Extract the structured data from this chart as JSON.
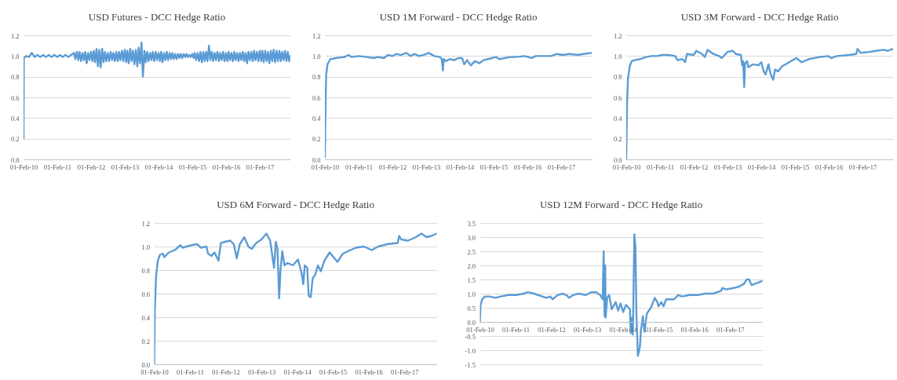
{
  "chart_data": [
    {
      "type": "line",
      "title": "USD Futures - DCC Hedge Ratio",
      "color": "#5b9bd5",
      "grid": "y",
      "xlim": [
        "2010-02-01",
        "2017-12-29"
      ],
      "xticks": [
        {
          "value": "2010-02-01",
          "label": "01-Feb-10"
        },
        {
          "value": "2011-02-01",
          "label": "01-Feb-11"
        },
        {
          "value": "2012-02-01",
          "label": "01-Feb-12"
        },
        {
          "value": "2013-02-01",
          "label": "01-Feb-13"
        },
        {
          "value": "2014-02-01",
          "label": "01-Feb-14"
        },
        {
          "value": "2015-02-01",
          "label": "01-Feb-15"
        },
        {
          "value": "2016-02-01",
          "label": "01-Feb-16"
        },
        {
          "value": "2017-02-01",
          "label": "01-Feb-17"
        }
      ],
      "ylim": [
        0,
        1.2
      ],
      "yticks": [
        {
          "value": 0,
          "label": "0.0"
        },
        0.2,
        0.4,
        0.6,
        0.8,
        {
          "value": 1,
          "label": "1.0"
        },
        1.2
      ],
      "x": [
        "2010-02-01",
        "2010-02-04",
        "2010-03-01",
        "2010-04-01",
        "2010-05-01",
        "2010-06-01",
        "2010-07-01",
        "2010-08-01",
        "2010-09-01",
        "2010-10-01",
        "2010-11-01",
        "2010-12-01",
        "2011-01-01",
        "2011-02-01",
        "2011-03-01",
        "2011-04-01",
        "2011-05-01",
        "2011-06-01",
        "2011-07-01",
        "2011-08-01",
        "2011-08-16",
        "2011-09-01",
        "2011-09-16",
        "2011-10-01",
        "2011-10-16",
        "2011-11-01",
        "2011-11-16",
        "2011-12-01",
        "2011-12-16",
        "2012-01-01",
        "2012-01-16",
        "2012-02-01",
        "2012-02-16",
        "2012-03-01",
        "2012-03-16",
        "2012-04-01",
        "2012-04-16",
        "2012-05-01",
        "2012-05-16",
        "2012-06-01",
        "2012-06-16",
        "2012-07-01",
        "2012-07-16",
        "2012-08-01",
        "2012-08-16",
        "2012-09-01",
        "2012-09-16",
        "2012-10-01",
        "2012-10-16",
        "2012-11-01",
        "2012-11-16",
        "2012-12-01",
        "2012-12-16",
        "2013-01-01",
        "2013-01-16",
        "2013-02-01",
        "2013-02-16",
        "2013-03-01",
        "2013-03-16",
        "2013-04-01",
        "2013-04-16",
        "2013-05-01",
        "2013-05-16",
        "2013-06-01",
        "2013-06-16",
        "2013-07-01",
        "2013-07-16",
        "2013-08-01",
        "2013-08-16",
        "2013-09-01",
        "2013-09-16",
        "2013-10-01",
        "2013-10-16",
        "2013-11-01",
        "2013-11-16",
        "2013-12-01",
        "2013-12-16",
        "2014-01-01",
        "2014-01-16",
        "2014-02-01",
        "2014-02-16",
        "2014-03-01",
        "2014-03-16",
        "2014-04-01",
        "2014-04-16",
        "2014-05-01",
        "2014-05-16",
        "2014-06-01",
        "2014-06-16",
        "2014-07-01",
        "2014-07-16",
        "2014-08-01",
        "2014-08-16",
        "2014-09-01",
        "2014-09-16",
        "2014-10-01",
        "2014-10-16",
        "2014-11-01",
        "2014-11-16",
        "2014-12-01",
        "2014-12-16",
        "2015-01-01",
        "2015-01-16",
        "2015-02-01",
        "2015-02-16",
        "2015-03-01",
        "2015-03-16",
        "2015-04-01",
        "2015-04-16",
        "2015-05-01",
        "2015-05-16",
        "2015-06-01",
        "2015-06-16",
        "2015-07-01",
        "2015-07-16",
        "2015-08-01",
        "2015-08-16",
        "2015-09-01",
        "2015-09-16",
        "2015-10-01",
        "2015-10-16",
        "2015-11-01",
        "2015-11-16",
        "2015-12-01",
        "2015-12-16",
        "2016-01-01",
        "2016-01-16",
        "2016-02-01",
        "2016-02-16",
        "2016-03-01",
        "2016-03-16",
        "2016-04-01",
        "2016-04-16",
        "2016-05-01",
        "2016-05-16",
        "2016-06-01",
        "2016-06-16",
        "2016-07-01",
        "2016-07-16",
        "2016-08-01",
        "2016-08-16",
        "2016-09-01",
        "2016-09-16",
        "2016-10-01",
        "2016-10-16",
        "2016-11-01",
        "2016-11-16",
        "2016-12-01",
        "2016-12-16",
        "2017-01-01",
        "2017-01-16",
        "2017-02-01",
        "2017-02-16",
        "2017-03-01",
        "2017-03-16",
        "2017-04-01",
        "2017-04-16",
        "2017-05-01",
        "2017-05-16",
        "2017-06-01",
        "2017-06-16",
        "2017-07-01",
        "2017-07-16",
        "2017-08-01",
        "2017-08-16",
        "2017-09-01",
        "2017-09-16",
        "2017-10-01",
        "2017-10-16",
        "2017-11-01",
        "2017-11-16",
        "2017-12-01",
        "2017-12-16",
        "2017-12-29"
      ],
      "values": [
        0.2,
        0.98,
        1.0,
        0.99,
        1.03,
        0.99,
        1.01,
        0.99,
        1.01,
        0.99,
        1.01,
        0.99,
        1.01,
        0.99,
        1.01,
        0.99,
        1.01,
        0.99,
        1.01,
        1.03,
        0.97,
        1.04,
        0.96,
        1.04,
        0.95,
        1.03,
        0.96,
        1.04,
        0.93,
        1.03,
        0.96,
        1.04,
        0.95,
        1.05,
        0.94,
        1.07,
        0.9,
        1.06,
        0.89,
        1.07,
        0.94,
        1.04,
        0.95,
        1.03,
        0.95,
        1.04,
        0.96,
        1.03,
        0.95,
        1.04,
        0.95,
        1.04,
        0.96,
        1.05,
        0.95,
        1.06,
        0.94,
        1.05,
        0.93,
        1.07,
        0.95,
        1.05,
        0.92,
        1.06,
        0.9,
        1.08,
        0.93,
        1.13,
        0.8,
        1.05,
        0.94,
        1.04,
        0.95,
        1.03,
        0.96,
        1.04,
        0.95,
        1.04,
        0.96,
        1.03,
        0.95,
        1.04,
        0.94,
        1.03,
        0.96,
        1.04,
        0.96,
        1.03,
        0.97,
        1.03,
        0.97,
        1.02,
        0.97,
        1.02,
        0.98,
        1.02,
        0.98,
        1.02,
        0.99,
        1.02,
        0.99,
        1.01,
        0.99,
        1.02,
        0.98,
        1.03,
        0.96,
        1.03,
        0.95,
        1.04,
        0.94,
        1.04,
        0.95,
        1.04,
        0.95,
        1.1,
        0.96,
        1.04,
        0.95,
        1.03,
        0.96,
        1.04,
        0.95,
        1.03,
        0.96,
        1.04,
        0.95,
        1.03,
        0.95,
        1.04,
        0.96,
        1.03,
        0.95,
        1.04,
        0.96,
        1.03,
        0.95,
        1.03,
        0.96,
        1.04,
        0.95,
        1.03,
        0.93,
        1.04,
        0.96,
        1.04,
        0.95,
        1.05,
        0.96,
        1.04,
        0.95,
        1.05,
        0.95,
        1.05,
        0.94,
        1.05,
        0.95,
        1.04,
        0.93,
        1.05,
        0.95,
        1.06,
        0.94,
        1.05,
        0.95,
        1.05,
        0.95,
        1.04,
        0.96,
        1.05,
        0.95,
        1.04,
        0.95,
        1.0
      ]
    },
    {
      "type": "line",
      "title": "USD 1M Forward - DCC Hedge Ratio",
      "color": "#5b9bd5",
      "grid": "y",
      "xlim": [
        "2010-02-01",
        "2017-12-29"
      ],
      "xticks": [
        {
          "value": "2010-02-01",
          "label": "01-Feb-10"
        },
        {
          "value": "2011-02-01",
          "label": "01-Feb-11"
        },
        {
          "value": "2012-02-01",
          "label": "01-Feb-12"
        },
        {
          "value": "2013-02-01",
          "label": "01-Feb-13"
        },
        {
          "value": "2014-02-01",
          "label": "01-Feb-14"
        },
        {
          "value": "2015-02-01",
          "label": "01-Feb-15"
        },
        {
          "value": "2016-02-01",
          "label": "01-Feb-16"
        },
        {
          "value": "2017-02-01",
          "label": "01-Feb-17"
        }
      ],
      "ylim": [
        0,
        1.2
      ],
      "yticks": [
        {
          "value": 0,
          "label": "0.0"
        },
        0.2,
        0.4,
        0.6,
        0.8,
        {
          "value": 1,
          "label": "1.0"
        },
        1.2
      ],
      "x": [
        "2010-02-01",
        "2010-02-08",
        "2010-02-15",
        "2010-03-01",
        "2010-04-01",
        "2010-06-01",
        "2010-09-01",
        "2010-10-15",
        "2010-11-15",
        "2011-02-01",
        "2011-05-01",
        "2011-07-15",
        "2011-09-01",
        "2011-11-01",
        "2011-12-15",
        "2012-02-01",
        "2012-03-15",
        "2012-05-01",
        "2012-07-01",
        "2012-08-15",
        "2012-10-01",
        "2012-11-15",
        "2013-01-01",
        "2013-03-01",
        "2013-05-01",
        "2013-07-01",
        "2013-07-20",
        "2013-08-01",
        "2013-08-10",
        "2013-09-01",
        "2013-10-15",
        "2013-12-01",
        "2014-01-15",
        "2014-02-25",
        "2014-03-20",
        "2014-04-20",
        "2014-06-01",
        "2014-07-15",
        "2014-09-01",
        "2014-10-15",
        "2014-12-01",
        "2015-01-15",
        "2015-03-01",
        "2015-04-01",
        "2015-06-01",
        "2015-08-01",
        "2015-10-01",
        "2016-01-01",
        "2016-03-20",
        "2016-05-01",
        "2016-08-01",
        "2016-10-15",
        "2016-12-15",
        "2017-02-15",
        "2017-05-01",
        "2017-08-01",
        "2017-10-01",
        "2017-12-29"
      ],
      "values": [
        0.02,
        0.55,
        0.82,
        0.92,
        0.97,
        0.98,
        0.99,
        1.01,
        0.99,
        1.0,
        0.99,
        0.98,
        0.99,
        0.98,
        1.01,
        1.0,
        1.02,
        1.01,
        1.03,
        1.0,
        1.02,
        1.0,
        1.01,
        1.03,
        1.0,
        0.99,
        0.97,
        0.86,
        0.97,
        0.95,
        0.97,
        0.96,
        0.98,
        0.98,
        0.92,
        0.96,
        0.91,
        0.95,
        0.93,
        0.96,
        0.97,
        0.98,
        0.99,
        0.97,
        0.98,
        0.99,
        0.99,
        1.0,
        0.98,
        1.0,
        1.0,
        1.0,
        1.02,
        1.01,
        1.02,
        1.01,
        1.02,
        1.03
      ]
    },
    {
      "type": "line",
      "title": "USD 3M Forward - DCC Hedge Ratio",
      "color": "#5b9bd5",
      "grid": "y",
      "xlim": [
        "2010-02-01",
        "2017-12-29"
      ],
      "xticks": [
        {
          "value": "2010-02-01",
          "label": "01-Feb-10"
        },
        {
          "value": "2011-02-01",
          "label": "01-Feb-11"
        },
        {
          "value": "2012-02-01",
          "label": "01-Feb-12"
        },
        {
          "value": "2013-02-01",
          "label": "01-Feb-13"
        },
        {
          "value": "2014-02-01",
          "label": "01-Feb-14"
        },
        {
          "value": "2015-02-01",
          "label": "01-Feb-15"
        },
        {
          "value": "2016-02-01",
          "label": "01-Feb-16"
        },
        {
          "value": "2017-02-01",
          "label": "01-Feb-17"
        }
      ],
      "ylim": [
        0,
        1.2
      ],
      "yticks": [
        {
          "value": 0,
          "label": "0.0"
        },
        0.2,
        0.4,
        0.6,
        0.8,
        {
          "value": 1,
          "label": "1.0"
        },
        1.2
      ],
      "x": [
        "2010-02-01",
        "2010-02-10",
        "2010-02-20",
        "2010-03-10",
        "2010-04-01",
        "2010-05-01",
        "2010-07-01",
        "2010-09-01",
        "2010-11-01",
        "2011-01-01",
        "2011-03-01",
        "2011-05-01",
        "2011-07-15",
        "2011-08-10",
        "2011-10-01",
        "2011-11-01",
        "2011-11-20",
        "2012-02-01",
        "2012-03-01",
        "2012-05-01",
        "2012-06-01",
        "2012-07-01",
        "2012-09-01",
        "2012-11-01",
        "2012-12-01",
        "2013-02-01",
        "2013-04-01",
        "2013-05-01",
        "2013-06-25",
        "2013-07-10",
        "2013-07-20",
        "2013-08-01",
        "2013-08-10",
        "2013-09-01",
        "2013-09-15",
        "2013-11-01",
        "2014-01-01",
        "2014-02-01",
        "2014-03-01",
        "2014-03-20",
        "2014-04-20",
        "2014-05-15",
        "2014-06-10",
        "2014-07-01",
        "2014-08-01",
        "2014-09-15",
        "2014-12-01",
        "2015-02-15",
        "2015-04-15",
        "2015-07-01",
        "2015-10-25",
        "2016-01-25",
        "2016-03-01",
        "2016-05-01",
        "2016-09-15",
        "2016-11-25",
        "2016-12-10",
        "2017-01-10",
        "2017-04-15",
        "2017-07-01",
        "2017-09-15",
        "2017-11-01",
        "2017-12-29"
      ],
      "values": [
        0.0,
        0.55,
        0.78,
        0.9,
        0.95,
        0.96,
        0.97,
        0.99,
        1.0,
        1.0,
        1.01,
        1.01,
        1.0,
        0.96,
        0.97,
        0.94,
        1.02,
        1.01,
        1.05,
        1.02,
        0.99,
        1.06,
        1.02,
        1.0,
        0.98,
        1.04,
        1.05,
        1.02,
        1.01,
        0.91,
        0.95,
        0.7,
        0.93,
        0.95,
        0.89,
        0.92,
        0.91,
        0.94,
        0.85,
        0.82,
        0.92,
        0.82,
        0.77,
        0.87,
        0.85,
        0.9,
        0.94,
        0.98,
        0.94,
        0.97,
        0.99,
        1.0,
        0.98,
        1.0,
        1.01,
        1.02,
        1.07,
        1.03,
        1.04,
        1.05,
        1.06,
        1.05,
        1.07
      ]
    },
    {
      "type": "line",
      "title": "USD 6M Forward - DCC Hedge Ratio",
      "color": "#5b9bd5",
      "grid": "y",
      "xlim": [
        "2010-02-01",
        "2017-12-29"
      ],
      "xticks": [
        {
          "value": "2010-02-01",
          "label": "01-Feb-10"
        },
        {
          "value": "2011-02-01",
          "label": "01-Feb-11"
        },
        {
          "value": "2012-02-01",
          "label": "01-Feb-12"
        },
        {
          "value": "2013-02-01",
          "label": "01-Feb-13"
        },
        {
          "value": "2014-02-01",
          "label": "01-Feb-14"
        },
        {
          "value": "2015-02-01",
          "label": "01-Feb-15"
        },
        {
          "value": "2016-02-01",
          "label": "01-Feb-16"
        },
        {
          "value": "2017-02-01",
          "label": "01-Feb-17"
        }
      ],
      "ylim": [
        0,
        1.2
      ],
      "yticks": [
        {
          "value": 0,
          "label": "0.0"
        },
        0.2,
        0.4,
        0.6,
        0.8,
        {
          "value": 1,
          "label": "1.0"
        },
        1.2
      ],
      "x": [
        "2010-02-01",
        "2010-02-07",
        "2010-02-20",
        "2010-03-10",
        "2010-04-01",
        "2010-05-01",
        "2010-05-15",
        "2010-07-01",
        "2010-09-01",
        "2010-10-25",
        "2010-11-20",
        "2011-02-10",
        "2011-04-15",
        "2011-05-25",
        "2011-07-20",
        "2011-08-05",
        "2011-09-10",
        "2011-10-10",
        "2011-11-20",
        "2011-12-15",
        "2012-01-25",
        "2012-03-20",
        "2012-04-25",
        "2012-05-25",
        "2012-06-25",
        "2012-08-10",
        "2012-09-20",
        "2012-10-25",
        "2012-12-10",
        "2013-02-01",
        "2013-03-25",
        "2013-05-01",
        "2013-06-10",
        "2013-06-28",
        "2013-07-15",
        "2013-08-01",
        "2013-08-15",
        "2013-09-02",
        "2013-09-25",
        "2013-10-27",
        "2013-12-20",
        "2014-02-10",
        "2014-03-20",
        "2014-04-05",
        "2014-04-20",
        "2014-05-15",
        "2014-05-30",
        "2014-06-20",
        "2014-07-10",
        "2014-08-05",
        "2014-09-01",
        "2014-10-01",
        "2014-11-07",
        "2014-12-30",
        "2015-02-08",
        "2015-03-20",
        "2015-05-15",
        "2015-07-05",
        "2015-09-25",
        "2015-12-15",
        "2016-03-05",
        "2016-05-10",
        "2016-08-10",
        "2016-11-25",
        "2016-12-10",
        "2016-12-31",
        "2017-03-10",
        "2017-05-30",
        "2017-07-25",
        "2017-09-15",
        "2017-11-05",
        "2017-12-29"
      ],
      "values": [
        0.0,
        0.45,
        0.75,
        0.88,
        0.93,
        0.94,
        0.91,
        0.95,
        0.97,
        1.01,
        0.99,
        1.01,
        1.02,
        0.99,
        1.0,
        0.94,
        0.92,
        0.95,
        0.88,
        1.03,
        1.04,
        1.05,
        1.02,
        0.9,
        1.02,
        1.08,
        1.0,
        0.98,
        1.03,
        1.06,
        1.11,
        1.05,
        0.82,
        1.04,
        0.98,
        0.56,
        0.8,
        0.96,
        0.84,
        0.86,
        0.84,
        0.89,
        0.77,
        0.68,
        0.84,
        0.82,
        0.58,
        0.57,
        0.73,
        0.76,
        0.84,
        0.79,
        0.88,
        0.95,
        0.91,
        0.87,
        0.94,
        0.96,
        0.99,
        1.0,
        0.97,
        1.0,
        1.02,
        1.03,
        1.09,
        1.06,
        1.05,
        1.08,
        1.11,
        1.08,
        1.09,
        1.11
      ]
    },
    {
      "type": "line",
      "title": "USD 12M Forward - DCC Hedge Ratio",
      "color": "#5b9bd5",
      "grid": "y",
      "xlim": [
        "2010-02-01",
        "2017-12-29"
      ],
      "xticks": [
        {
          "value": "2010-02-01",
          "label": "01-Feb-10"
        },
        {
          "value": "2011-02-01",
          "label": "01-Feb-11"
        },
        {
          "value": "2012-02-01",
          "label": "01-Feb-12"
        },
        {
          "value": "2013-02-01",
          "label": "01-Feb-13"
        },
        {
          "value": "2014-02-01",
          "label": "01-Feb-14"
        },
        {
          "value": "2015-02-01",
          "label": "01-Feb-15"
        },
        {
          "value": "2016-02-01",
          "label": "01-Feb-16"
        },
        {
          "value": "2017-02-01",
          "label": "01-Feb-17"
        }
      ],
      "ylim": [
        -1.5,
        3.5
      ],
      "yticks": [
        -1.5,
        {
          "value": -1,
          "label": "-1.0"
        },
        -0.5,
        {
          "value": 0,
          "label": "0.0"
        },
        0.5,
        {
          "value": 1,
          "label": "1.0"
        },
        1.5,
        {
          "value": 2,
          "label": "2.0"
        },
        2.5,
        {
          "value": 3,
          "label": "3.0"
        },
        3.5
      ],
      "x": [
        "2010-02-01",
        "2010-02-08",
        "2010-02-25",
        "2010-03-25",
        "2010-05-15",
        "2010-07-10",
        "2010-08-30",
        "2010-11-20",
        "2011-02-05",
        "2011-04-25",
        "2011-06-05",
        "2011-08-10",
        "2011-11-01",
        "2011-12-10",
        "2012-01-20",
        "2012-02-15",
        "2012-04-05",
        "2012-05-25",
        "2012-07-05",
        "2012-08-01",
        "2012-09-10",
        "2012-11-05",
        "2013-01-20",
        "2013-03-15",
        "2013-05-05",
        "2013-06-15",
        "2013-07-10",
        "2013-07-20",
        "2013-07-30",
        "2013-08-05",
        "2013-08-10",
        "2013-08-25",
        "2013-09-15",
        "2013-10-10",
        "2013-11-20",
        "2013-12-15",
        "2014-01-10",
        "2014-02-05",
        "2014-03-05",
        "2014-04-15",
        "2014-04-22",
        "2014-05-05",
        "2014-05-15",
        "2014-05-30",
        "2014-06-10",
        "2014-06-20",
        "2014-07-05",
        "2014-07-25",
        "2014-08-05",
        "2014-08-25",
        "2014-09-10",
        "2014-10-05",
        "2014-11-15",
        "2014-12-25",
        "2015-01-20",
        "2015-02-01",
        "2015-03-01",
        "2015-03-25",
        "2015-04-20",
        "2015-07-10",
        "2015-08-20",
        "2015-09-30",
        "2015-12-15",
        "2016-03-05",
        "2016-05-25",
        "2016-08-15",
        "2016-11-01",
        "2016-11-15",
        "2016-12-25",
        "2017-03-10",
        "2017-05-05",
        "2017-06-25",
        "2017-07-20",
        "2017-08-15",
        "2017-09-10",
        "2017-10-15",
        "2017-12-29"
      ],
      "values": [
        0.0,
        0.6,
        0.8,
        0.9,
        0.9,
        0.85,
        0.9,
        0.95,
        0.95,
        1.0,
        1.05,
        1.0,
        0.9,
        0.85,
        0.9,
        0.8,
        0.95,
        1.0,
        0.95,
        0.85,
        0.95,
        1.0,
        0.95,
        1.05,
        1.05,
        0.95,
        0.8,
        2.5,
        0.2,
        2.0,
        0.15,
        0.85,
        0.95,
        0.45,
        0.7,
        0.4,
        0.65,
        0.35,
        0.6,
        0.45,
        -0.4,
        0.15,
        -0.45,
        3.1,
        2.65,
        0.3,
        -1.2,
        -0.9,
        -0.3,
        0.2,
        -0.35,
        0.3,
        0.5,
        0.85,
        0.7,
        0.55,
        0.7,
        0.55,
        0.8,
        0.8,
        0.95,
        0.9,
        0.95,
        0.95,
        1.0,
        1.0,
        1.1,
        1.2,
        1.15,
        1.2,
        1.25,
        1.35,
        1.5,
        1.5,
        1.3,
        1.35,
        1.45
      ]
    }
  ]
}
